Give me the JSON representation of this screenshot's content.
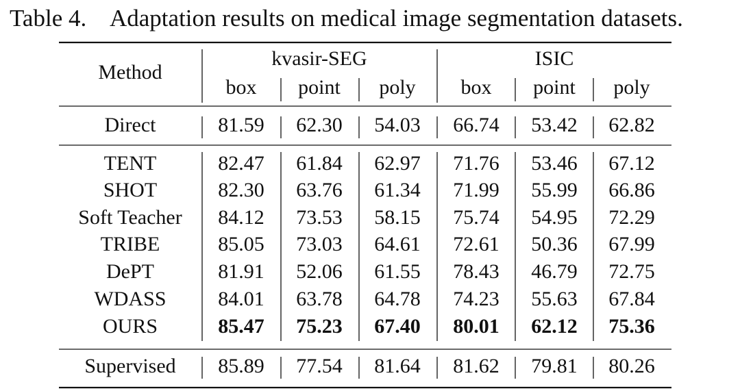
{
  "caption": {
    "label": "Table 4.",
    "text": "Adaptation results on medical image segmentation datasets."
  },
  "table": {
    "header": {
      "method": "Method",
      "groups": [
        "kvasir-SEG",
        "ISIC"
      ],
      "columns": [
        "box",
        "point",
        "poly",
        "box",
        "point",
        "poly"
      ]
    },
    "baseline": {
      "method": "Direct",
      "values": [
        "81.59",
        "62.30",
        "54.03",
        "66.74",
        "53.42",
        "62.82"
      ]
    },
    "rows": [
      {
        "method": "TENT",
        "values": [
          "82.47",
          "61.84",
          "62.97",
          "71.76",
          "53.46",
          "67.12"
        ]
      },
      {
        "method": "SHOT",
        "values": [
          "82.30",
          "63.76",
          "61.34",
          "71.99",
          "55.99",
          "66.86"
        ]
      },
      {
        "method": "Soft Teacher",
        "values": [
          "84.12",
          "73.53",
          "58.15",
          "75.74",
          "54.95",
          "72.29"
        ]
      },
      {
        "method": "TRIBE",
        "values": [
          "85.05",
          "73.03",
          "64.61",
          "72.61",
          "50.36",
          "67.99"
        ]
      },
      {
        "method": "DePT",
        "values": [
          "81.91",
          "52.06",
          "61.55",
          "78.43",
          "46.79",
          "72.75"
        ]
      },
      {
        "method": "WDASS",
        "values": [
          "84.01",
          "63.78",
          "64.78",
          "74.23",
          "55.63",
          "67.84"
        ]
      },
      {
        "method": "OURS",
        "values": [
          "85.47",
          "75.23",
          "67.40",
          "80.01",
          "62.12",
          "75.36"
        ]
      }
    ],
    "supervised": {
      "method": "Supervised",
      "values": [
        "85.89",
        "77.54",
        "81.64",
        "81.62",
        "79.81",
        "80.26"
      ]
    }
  }
}
